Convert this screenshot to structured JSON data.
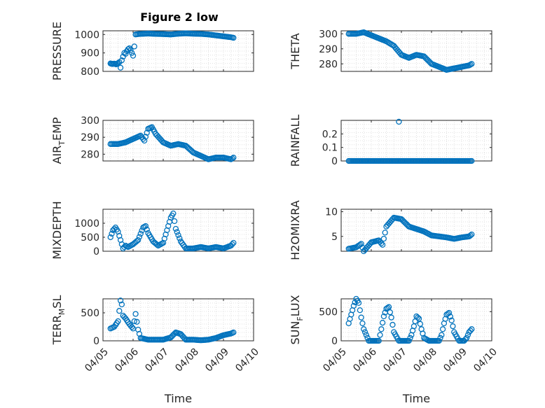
{
  "figure": {
    "title": "Figure 2 low",
    "marker_color": "#0072BD",
    "grid": "major and minor dotted"
  },
  "chart_data": [
    {
      "type": "scatter",
      "id": "pressure",
      "title": "Figure 2 low",
      "ylabel_main": "PRESSURE",
      "ylabel_sub": "",
      "ylim": [
        800,
        1020
      ],
      "yticks": [
        800,
        900,
        1000
      ],
      "xlim": [
        "04/05",
        "04/10"
      ],
      "xticks": [],
      "xlabel": "",
      "series": [
        {
          "x": [
            "2012-04-05 06:00",
            "2012-04-05 07:30",
            "2012-04-05 09:00",
            "2012-04-05 10:30",
            "2012-04-05 12:00",
            "2012-04-05 13:00",
            "2012-04-05 14:00",
            "2012-04-05 15:00",
            "2012-04-05 16:00",
            "2012-04-05 17:00",
            "2012-04-05 18:00",
            "2012-04-05 19:00",
            "2012-04-05 20:00",
            "2012-04-05 21:00",
            "2012-04-05 22:00",
            "2012-04-05 23:00",
            "2012-04-06 00:00",
            "2012-04-06 01:00",
            "2012-04-06 02:00",
            "2012-04-06 04:00",
            "2012-04-06 06:00",
            "2012-04-06 09:00",
            "2012-04-06 12:00",
            "2012-04-06 18:00",
            "2012-04-07 00:00",
            "2012-04-07 06:00",
            "2012-04-07 12:00",
            "2012-04-07 18:00",
            "2012-04-08 00:00",
            "2012-04-08 06:00",
            "2012-04-08 12:00",
            "2012-04-08 18:00",
            "2012-04-09 00:00",
            "2012-04-09 06:00",
            "2012-04-09 08:00"
          ],
          "y": [
            843,
            840,
            842,
            838,
            845,
            850,
            820,
            860,
            880,
            900,
            895,
            910,
            920,
            925,
            915,
            900,
            885,
            935,
            1000,
            1002,
            1003,
            1004,
            1005,
            1003,
            1002,
            1000,
            1004,
            1006,
            1004,
            1003,
            1000,
            995,
            990,
            985,
            982
          ]
        }
      ]
    },
    {
      "type": "scatter",
      "id": "theta",
      "ylabel_main": "THETA",
      "ylabel_sub": "",
      "ylim": [
        275,
        302
      ],
      "yticks": [
        280,
        290,
        300
      ],
      "xlim": [
        "04/05",
        "04/10"
      ],
      "xticks": [],
      "xlabel": "",
      "series": [
        {
          "x": [
            "2012-04-05 06:00",
            "2012-04-05 12:00",
            "2012-04-05 18:00",
            "2012-04-06 00:00",
            "2012-04-06 06:00",
            "2012-04-06 12:00",
            "2012-04-06 18:00",
            "2012-04-07 00:00",
            "2012-04-07 06:00",
            "2012-04-07 12:00",
            "2012-04-07 18:00",
            "2012-04-08 00:00",
            "2012-04-08 06:00",
            "2012-04-08 12:00",
            "2012-04-08 18:00",
            "2012-04-09 00:00",
            "2012-04-09 06:00",
            "2012-04-09 08:00"
          ],
          "y": [
            300,
            300,
            301,
            299,
            297,
            295,
            292,
            286,
            284,
            286,
            285,
            280,
            278,
            276,
            277,
            278,
            279,
            280
          ]
        }
      ]
    },
    {
      "type": "scatter",
      "id": "air-temp",
      "ylabel_main": "AIR",
      "ylabel_sub": "T",
      "ylabel_tail": "EMP",
      "ylim": [
        276,
        300
      ],
      "yticks": [
        280,
        290,
        300
      ],
      "xlim": [
        "04/05",
        "04/10"
      ],
      "xticks": [],
      "xlabel": "",
      "series": [
        {
          "x": [
            "2012-04-05 06:00",
            "2012-04-05 12:00",
            "2012-04-05 18:00",
            "2012-04-06 00:00",
            "2012-04-06 06:00",
            "2012-04-06 09:00",
            "2012-04-06 12:00",
            "2012-04-06 15:00",
            "2012-04-06 18:00",
            "2012-04-07 00:00",
            "2012-04-07 06:00",
            "2012-04-07 12:00",
            "2012-04-07 18:00",
            "2012-04-08 00:00",
            "2012-04-08 06:00",
            "2012-04-08 12:00",
            "2012-04-08 18:00",
            "2012-04-09 00:00",
            "2012-04-09 06:00",
            "2012-04-09 08:00"
          ],
          "y": [
            286,
            286,
            287,
            289,
            291,
            288,
            295,
            296,
            292,
            287,
            285,
            286,
            285,
            281,
            279,
            277,
            278,
            278,
            277,
            278
          ]
        }
      ]
    },
    {
      "type": "scatter",
      "id": "rainfall",
      "ylabel_main": "RAINFALL",
      "ylabel_sub": "",
      "ylim": [
        0,
        0.3
      ],
      "yticks": [
        0,
        0.1,
        0.2
      ],
      "ytick_labels": [
        "0",
        "0.1",
        "0.2"
      ],
      "xlim": [
        "04/05",
        "04/10"
      ],
      "xticks": [],
      "xlabel": "",
      "series": [
        {
          "x": [
            "2012-04-05 06:00",
            "2012-04-05 12:00",
            "2012-04-05 18:00",
            "2012-04-06 00:00",
            "2012-04-06 06:00",
            "2012-04-06 12:00",
            "2012-04-06 18:00",
            "2012-04-07 00:00",
            "2012-04-07 06:00",
            "2012-04-07 12:00",
            "2012-04-07 18:00",
            "2012-04-08 00:00",
            "2012-04-08 06:00",
            "2012-04-08 12:00",
            "2012-04-08 18:00",
            "2012-04-09 00:00",
            "2012-04-09 06:00",
            "2012-04-09 08:00",
            "2012-04-06 22:00"
          ],
          "y": [
            0,
            0,
            0,
            0,
            0,
            0,
            0,
            0,
            0,
            0,
            0,
            0,
            0,
            0,
            0,
            0,
            0,
            0,
            0.29
          ]
        }
      ]
    },
    {
      "type": "scatter",
      "id": "mixdepth",
      "ylabel_main": "MIXDEPTH",
      "ylabel_sub": "",
      "ylim": [
        0,
        1500
      ],
      "yticks": [
        0,
        500,
        1000
      ],
      "xlim": [
        "04/05",
        "04/10"
      ],
      "xticks": [],
      "xlabel": "",
      "series": [
        {
          "x": [
            "2012-04-05 06:00",
            "2012-04-05 08:00",
            "2012-04-05 10:00",
            "2012-04-05 12:00",
            "2012-04-05 14:00",
            "2012-04-05 16:00",
            "2012-04-05 18:00",
            "2012-04-05 20:00",
            "2012-04-06 00:00",
            "2012-04-06 04:00",
            "2012-04-06 08:00",
            "2012-04-06 10:00",
            "2012-04-06 12:00",
            "2012-04-06 16:00",
            "2012-04-06 20:00",
            "2012-04-07 00:00",
            "2012-04-07 04:00",
            "2012-04-07 06:00",
            "2012-04-07 08:00",
            "2012-04-07 10:00",
            "2012-04-07 14:00",
            "2012-04-07 18:00",
            "2012-04-08 00:00",
            "2012-04-08 06:00",
            "2012-04-08 12:00",
            "2012-04-08 18:00",
            "2012-04-09 00:00",
            "2012-04-09 06:00",
            "2012-04-09 08:00"
          ],
          "y": [
            500,
            750,
            850,
            700,
            400,
            100,
            200,
            150,
            250,
            400,
            850,
            900,
            650,
            350,
            200,
            300,
            900,
            1200,
            1350,
            800,
            350,
            100,
            100,
            150,
            100,
            150,
            100,
            200,
            300
          ]
        }
      ]
    },
    {
      "type": "scatter",
      "id": "h2omixra",
      "ylabel_main": "H2OMIXRA",
      "ylabel_sub": "",
      "ylim": [
        2,
        10.5
      ],
      "yticks": [
        5,
        10
      ],
      "xlim": [
        "04/05",
        "04/10"
      ],
      "xticks": [],
      "xlabel": "",
      "series": [
        {
          "x": [
            "2012-04-05 06:00",
            "2012-04-05 12:00",
            "2012-04-05 16:00",
            "2012-04-05 18:00",
            "2012-04-06 00:00",
            "2012-04-06 06:00",
            "2012-04-06 09:00",
            "2012-04-06 12:00",
            "2012-04-06 18:00",
            "2012-04-07 00:00",
            "2012-04-07 06:00",
            "2012-04-07 12:00",
            "2012-04-07 18:00",
            "2012-04-08 00:00",
            "2012-04-08 06:00",
            "2012-04-08 12:00",
            "2012-04-08 18:00",
            "2012-04-09 00:00",
            "2012-04-09 06:00",
            "2012-04-09 08:00"
          ],
          "y": [
            2.5,
            2.8,
            3.5,
            2.0,
            3.8,
            4.2,
            3.3,
            7.0,
            8.8,
            8.5,
            7.0,
            6.5,
            6.0,
            5.2,
            5.0,
            4.8,
            4.5,
            4.8,
            5.0,
            5.4
          ]
        }
      ]
    },
    {
      "type": "scatter",
      "id": "terr-msl",
      "ylabel_main": "TERR",
      "ylabel_sub": "M",
      "ylabel_tail": "SL",
      "ylim": [
        0,
        750
      ],
      "yticks": [
        0,
        500
      ],
      "xlim": [
        "04/05",
        "04/10"
      ],
      "xticks": [
        "04/05",
        "04/06",
        "04/07",
        "04/08",
        "04/09",
        "04/10"
      ],
      "xlabel": "Time",
      "series": [
        {
          "x": [
            "2012-04-05 06:00",
            "2012-04-05 09:00",
            "2012-04-05 12:00",
            "2012-04-05 14:00",
            "2012-04-05 15:00",
            "2012-04-05 16:00",
            "2012-04-05 18:00",
            "2012-04-05 21:00",
            "2012-04-06 00:00",
            "2012-04-06 02:00",
            "2012-04-06 04:00",
            "2012-04-06 06:00",
            "2012-04-06 12:00",
            "2012-04-06 18:00",
            "2012-04-07 00:00",
            "2012-04-07 06:00",
            "2012-04-07 10:00",
            "2012-04-07 14:00",
            "2012-04-07 18:00",
            "2012-04-08 00:00",
            "2012-04-08 06:00",
            "2012-04-08 12:00",
            "2012-04-08 18:00",
            "2012-04-09 00:00",
            "2012-04-09 06:00",
            "2012-04-09 08:00"
          ],
          "y": [
            220,
            250,
            350,
            720,
            650,
            450,
            400,
            300,
            220,
            480,
            200,
            50,
            20,
            20,
            20,
            60,
            150,
            120,
            20,
            20,
            10,
            20,
            50,
            100,
            130,
            150
          ]
        }
      ]
    },
    {
      "type": "scatter",
      "id": "sun-flux",
      "ylabel_main": "SUN",
      "ylabel_sub": "F",
      "ylabel_tail": "LUX",
      "ylim": [
        0,
        720
      ],
      "yticks": [
        0,
        500
      ],
      "xlim": [
        "04/05",
        "04/10"
      ],
      "xticks": [
        "04/05",
        "04/06",
        "04/07",
        "04/08",
        "04/09",
        "04/10"
      ],
      "xlabel": "Time",
      "series": [
        {
          "x": [
            "2012-04-05 06:00",
            "2012-04-05 08:00",
            "2012-04-05 10:00",
            "2012-04-05 12:00",
            "2012-04-05 14:00",
            "2012-04-05 16:00",
            "2012-04-05 18:00",
            "2012-04-05 22:00",
            "2012-04-06 02:00",
            "2012-04-06 06:00",
            "2012-04-06 08:00",
            "2012-04-06 10:00",
            "2012-04-06 12:00",
            "2012-04-06 14:00",
            "2012-04-06 16:00",
            "2012-04-06 18:00",
            "2012-04-06 22:00",
            "2012-04-07 02:00",
            "2012-04-07 06:00",
            "2012-04-07 08:00",
            "2012-04-07 10:00",
            "2012-04-07 12:00",
            "2012-04-07 14:00",
            "2012-04-07 16:00",
            "2012-04-07 18:00",
            "2012-04-07 22:00",
            "2012-04-08 02:00",
            "2012-04-08 06:00",
            "2012-04-08 08:00",
            "2012-04-08 10:00",
            "2012-04-08 12:00",
            "2012-04-08 14:00",
            "2012-04-08 16:00",
            "2012-04-08 18:00",
            "2012-04-08 22:00",
            "2012-04-09 02:00",
            "2012-04-09 04:00",
            "2012-04-09 06:00",
            "2012-04-09 08:00"
          ],
          "y": [
            300,
            450,
            600,
            720,
            650,
            400,
            200,
            0,
            0,
            0,
            200,
            420,
            550,
            580,
            400,
            150,
            0,
            0,
            0,
            100,
            250,
            420,
            380,
            200,
            50,
            0,
            0,
            0,
            100,
            300,
            450,
            480,
            350,
            150,
            0,
            0,
            50,
            150,
            200
          ]
        }
      ]
    }
  ]
}
